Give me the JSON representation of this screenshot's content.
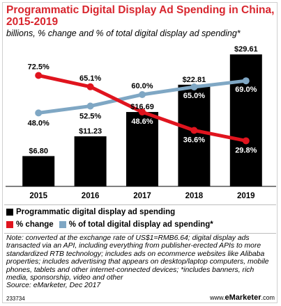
{
  "header": {
    "title": "Programmatic Digital Display Ad Spending in China, 2015-2019",
    "subtitle": "billions, % change and % of total digital display ad spending*"
  },
  "chart_data": {
    "type": "bar",
    "categories": [
      "2015",
      "2016",
      "2017",
      "2018",
      "2019"
    ],
    "series": [
      {
        "name": "Programmatic digital display ad spending",
        "kind": "bar",
        "values": [
          6.8,
          11.23,
          16.69,
          22.81,
          29.61
        ],
        "labels": [
          "$6.80",
          "$11.23",
          "$16.69",
          "$22.81",
          "$29.61"
        ],
        "color": "#000000"
      },
      {
        "name": "% change",
        "kind": "line",
        "values": [
          72.5,
          65.1,
          48.6,
          36.6,
          29.8
        ],
        "labels": [
          "72.5%",
          "65.1%",
          "48.6%",
          "36.6%",
          "29.8%"
        ],
        "color": "#e0141e"
      },
      {
        "name": "% of total digital display ad spending*",
        "kind": "line",
        "values": [
          48.0,
          52.5,
          60.0,
          65.0,
          69.0
        ],
        "labels": [
          "48.0%",
          "52.5%",
          "60.0%",
          "65.0%",
          "69.0%"
        ],
        "color": "#7fa7c4"
      }
    ],
    "ylim_bars": [
      0,
      30
    ],
    "ylim_percent": [
      0,
      80
    ],
    "grid": false,
    "legend_position": "bottom"
  },
  "legend": {
    "items": [
      {
        "label": "Programmatic digital display ad spending",
        "color": "#000000"
      },
      {
        "label": "% change",
        "color": "#e0141e"
      },
      {
        "label": "% of total digital display ad spending*",
        "color": "#7fa7c4"
      }
    ]
  },
  "note": "Note: converted at the exchange rate of US$1=RMB6.64; digital display ads transacted via an API, including everything from publisher-erected APIs to more standardized RTB technology; includes ads on ecommerce websites like Alibaba properties; includes advertising that appears on desktop/laptop computers, mobile phones, tablets and other internet-connected devices; *includes banners, rich media, sponsorship, video and other",
  "source": "Source: eMarketer, Dec 2017",
  "footer": {
    "id": "233734",
    "brand_prefix": "www.",
    "brand_name": "eMarketer",
    "brand_suffix": ".com"
  }
}
